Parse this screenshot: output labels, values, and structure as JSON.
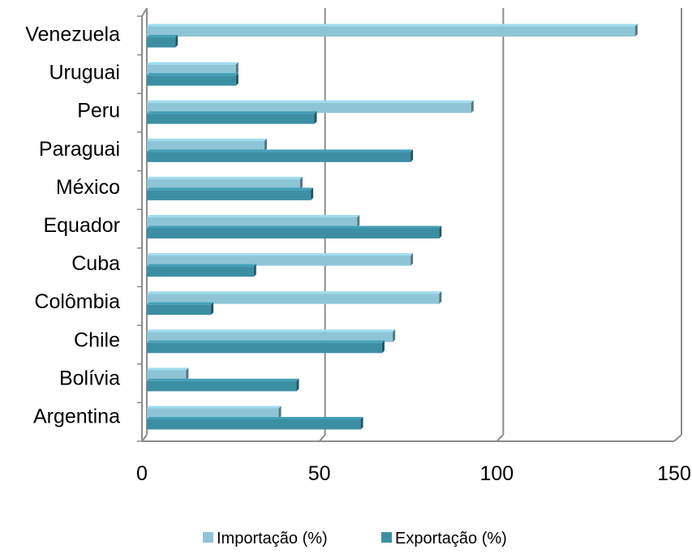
{
  "chart_data": {
    "type": "bar",
    "orientation": "horizontal",
    "style": "3d",
    "categories": [
      "Venezuela",
      "Uruguai",
      "Peru",
      "Paraguai",
      "México",
      "Equador",
      "Cuba",
      "Colômbia",
      "Chile",
      "Bolívia",
      "Argentina"
    ],
    "series": [
      {
        "name": "Importação (%)",
        "color": "#8ec5d6",
        "values": [
          137,
          25,
          91,
          33,
          43,
          59,
          74,
          82,
          69,
          11,
          37
        ]
      },
      {
        "name": "Exportação (%)",
        "color": "#3c8fa3",
        "values": [
          8,
          25,
          47,
          74,
          46,
          82,
          30,
          18,
          66,
          42,
          60
        ]
      }
    ],
    "xlim": [
      0,
      150
    ],
    "x_ticks": [
      "0",
      "50",
      "100",
      "150"
    ],
    "grid": true,
    "legend": "bottom"
  }
}
